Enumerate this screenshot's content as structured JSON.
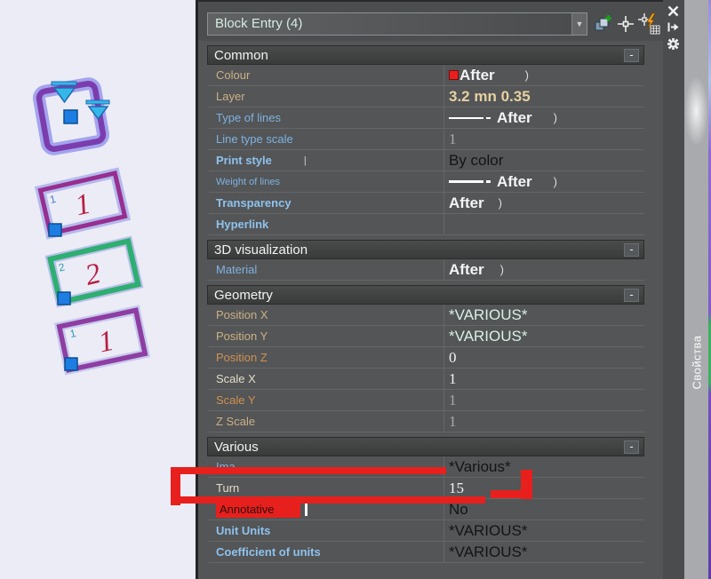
{
  "ui": {
    "collapse_glyph": "-",
    "dropdown_glyph": "▼",
    "annotation_color": "#e8201d"
  },
  "palette": {
    "selector": {
      "value": "Block Entry (4)"
    },
    "tab_label": "Свойства",
    "toolbar_icons": [
      "toggle-pickadd",
      "select-objects",
      "quick-select"
    ],
    "titlebar_icons": [
      "close",
      "auto-hide",
      "settings"
    ],
    "sections": [
      {
        "title": "Common",
        "rows": [
          {
            "label": "Colour",
            "label_color": "tan",
            "value": "After",
            "value_color": "white-b",
            "swatch": "#e8201d",
            "mark": ")",
            "mark_gap": 34
          },
          {
            "label": "Layer",
            "label_color": "tan",
            "value": "3.2 mn 0.35",
            "value_color": "tan"
          },
          {
            "label": "Type of lines",
            "label_color": "blue",
            "value": "After",
            "value_color": "white-b",
            "line": "thin",
            "mark": ")",
            "mark_gap": 24
          },
          {
            "label": "Line type scale",
            "label_color": "blue",
            "value": "1",
            "value_color": "gray",
            "serif": true
          },
          {
            "label": "Print style",
            "label_color": "blue-b",
            "label_mark": "|",
            "value": "By color",
            "value_color": "black-lg"
          },
          {
            "label": "Weight of lines",
            "label_color": "blue",
            "label_small": true,
            "value": "After",
            "value_color": "white-b",
            "line": "thick",
            "mark": ")",
            "mark_gap": 24
          },
          {
            "label": "Transparency",
            "label_color": "blue-b",
            "value": "After",
            "value_color": "white-b",
            "mark": ")",
            "mark_gap": 16
          },
          {
            "label": "Hyperlink",
            "label_color": "blue-b",
            "value": "",
            "value_color": "white"
          }
        ]
      },
      {
        "title": "3D visualization",
        "rows": [
          {
            "label": "Material",
            "label_color": "blue",
            "value": "After",
            "value_color": "white-b",
            "mark": ")",
            "mark_gap": 18
          }
        ]
      },
      {
        "title": "Geometry",
        "rows": [
          {
            "label": "Position X",
            "label_color": "tan",
            "value": "*VARIOUS*",
            "value_color": "cyan"
          },
          {
            "label": "Position Y",
            "label_color": "tan",
            "value": "*VARIOUS*",
            "value_color": "cyan"
          },
          {
            "label": "Position Z",
            "label_color": "orange",
            "value": "0",
            "value_color": "white",
            "serif": true
          },
          {
            "label": "Scale X",
            "label_color": "pale",
            "value": "1",
            "value_color": "white",
            "serif": true
          },
          {
            "label": "Scale Y",
            "label_color": "orange",
            "value": "1",
            "value_color": "gray",
            "serif": true
          },
          {
            "label": "Z Scale",
            "label_color": "tan",
            "value": "1",
            "value_color": "gray",
            "serif": true
          }
        ]
      },
      {
        "title": "Various",
        "rows": [
          {
            "label": "Ima",
            "label_color": "blue",
            "value": "*Various*",
            "value_color": "black-lg"
          },
          {
            "label": "Turn",
            "label_color": "pale",
            "value": "15",
            "value_color": "white",
            "serif": true
          },
          {
            "label": "Annotative",
            "label_color": "dark",
            "highlight": true,
            "caret": true,
            "value": "No",
            "value_color": "black-lg"
          },
          {
            "label": "Unit Units",
            "label_color": "blue-b",
            "value": "*VARIOUS*",
            "value_color": "black-lg"
          },
          {
            "label": "Coefficient of units",
            "label_color": "blue-b",
            "value": "*VARIOUS*",
            "value_color": "black-lg"
          }
        ]
      }
    ]
  },
  "canvas": {
    "shapes": [
      {
        "name": "square-block"
      },
      {
        "name": "rect-block-1",
        "number": "1",
        "corner_label": "1"
      },
      {
        "name": "rect-block-2",
        "number": "2",
        "corner_label": "2"
      },
      {
        "name": "rect-block-3",
        "number": "1",
        "corner_label": "1"
      }
    ]
  }
}
